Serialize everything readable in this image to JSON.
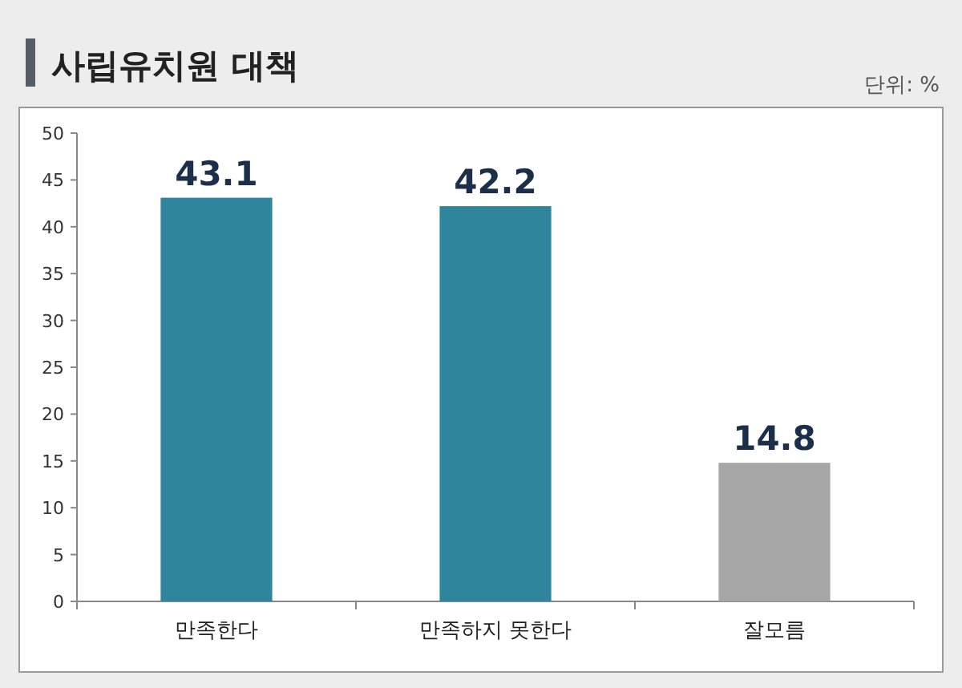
{
  "chart_data": {
    "type": "bar",
    "title": "사립유치원 대책",
    "annotations": [
      "단위: %"
    ],
    "categories": [
      "만족한다",
      "만족하지 못한다",
      "잘모름"
    ],
    "values": [
      43.1,
      42.2,
      14.8
    ],
    "colors": [
      "#2e859c",
      "#2e859c",
      "#a6a6a6"
    ],
    "ylim": [
      0,
      50
    ],
    "yticks": [
      0,
      5,
      10,
      15,
      20,
      25,
      30,
      35,
      40,
      45,
      50
    ],
    "data_labels": true
  }
}
